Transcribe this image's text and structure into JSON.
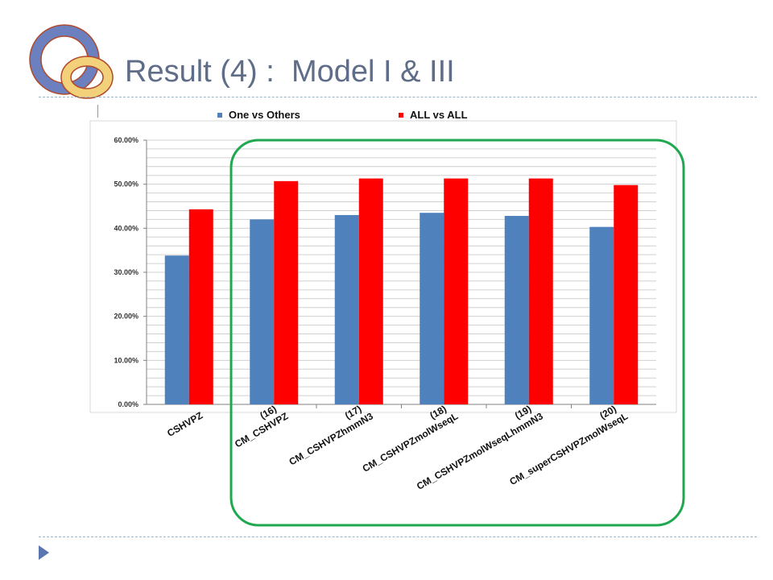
{
  "slide": {
    "title": "Result (4) :  Model I & III"
  },
  "colors": {
    "title": "#5f6d89",
    "series_blue": "#4f81bd",
    "series_red": "#ff0000",
    "highlight_box": "#1fa84f",
    "logo_outer_ring": "#6c7fbf",
    "logo_inner_ring": "#f3d07a",
    "logo_ring_border": "#b04a2a",
    "rule": "#9ab4c8",
    "bullet": "#5a75b0"
  },
  "chart_data": {
    "type": "bar",
    "title": "",
    "xlabel": "",
    "ylabel": "",
    "legend_position": "top",
    "grid": true,
    "ylim": [
      0,
      60
    ],
    "yticks": [
      "0.00%",
      "10.00%",
      "20.00%",
      "30.00%",
      "40.00%",
      "50.00%",
      "60.00%"
    ],
    "categories": [
      "CSHVPZ",
      "(16)\nCM_CSHVPZ",
      "(17)\nCM_CSHVPZhmmN3",
      "(18)\nCM_CSHVPZmolWseqL",
      "(19)\nCM_CSHVPZmolWseqLhmmN3",
      "(20)\nCM_superCSHVPZmolWseqL"
    ],
    "series": [
      {
        "name": "One vs Others",
        "color": "#4f81bd",
        "values": [
          33.8,
          42.0,
          43.0,
          43.5,
          42.8,
          40.3
        ]
      },
      {
        "name": "ALL vs ALL",
        "color": "#ff0000",
        "values": [
          44.3,
          50.7,
          51.3,
          51.3,
          51.3,
          49.8
        ]
      }
    ],
    "highlighted_categories": [
      1,
      2,
      3,
      4,
      5
    ]
  }
}
